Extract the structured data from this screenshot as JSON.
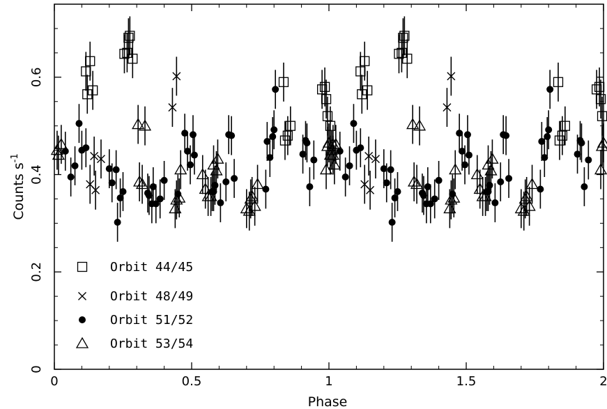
{
  "chart_data": {
    "type": "scatter",
    "title": "",
    "xlabel": "Phase",
    "ylabel": "Counts s",
    "ylabel_superscript": "-1",
    "xlim": [
      0,
      2
    ],
    "ylim": [
      0,
      0.75
    ],
    "x_ticks": [
      0,
      0.5,
      1,
      1.5,
      2
    ],
    "x_tick_labels": [
      "0",
      "0.5",
      "1",
      "1.5",
      "2"
    ],
    "y_ticks": [
      0,
      0.2,
      0.4,
      0.6
    ],
    "y_tick_labels": [
      "0",
      "0.2",
      "0.4",
      "0.6"
    ],
    "grid": false,
    "legend_position": "bottom-left",
    "series": [
      {
        "name": "Orbit 44/45",
        "marker": "square",
        "points": [
          [
            0.115,
            0.612
          ],
          [
            0.12,
            0.565
          ],
          [
            0.13,
            0.633
          ],
          [
            0.14,
            0.573
          ],
          [
            0.255,
            0.648
          ],
          [
            0.265,
            0.65
          ],
          [
            0.27,
            0.681
          ],
          [
            0.275,
            0.685
          ],
          [
            0.285,
            0.638
          ],
          [
            0.835,
            0.59
          ],
          [
            0.84,
            0.47
          ],
          [
            0.85,
            0.48
          ],
          [
            0.86,
            0.5
          ],
          [
            0.975,
            0.575
          ],
          [
            0.985,
            0.58
          ],
          [
            0.99,
            0.555
          ],
          [
            0.995,
            0.52
          ],
          [
            1.005,
            0.5
          ]
        ]
      },
      {
        "name": "Orbit 48/49",
        "marker": "cross",
        "points": [
          [
            0.13,
            0.38
          ],
          [
            0.145,
            0.438
          ],
          [
            0.15,
            0.368
          ],
          [
            0.17,
            0.432
          ],
          [
            0.43,
            0.538
          ],
          [
            0.445,
            0.602
          ]
        ]
      },
      {
        "name": "Orbit 51/52",
        "marker": "dot",
        "points": [
          [
            0.04,
            0.448
          ],
          [
            0.06,
            0.395
          ],
          [
            0.075,
            0.418
          ],
          [
            0.09,
            0.505
          ],
          [
            0.1,
            0.45
          ],
          [
            0.115,
            0.455
          ],
          [
            0.2,
            0.412
          ],
          [
            0.21,
            0.383
          ],
          [
            0.225,
            0.41
          ],
          [
            0.23,
            0.302
          ],
          [
            0.24,
            0.352
          ],
          [
            0.25,
            0.365
          ],
          [
            0.34,
            0.362
          ],
          [
            0.345,
            0.357
          ],
          [
            0.355,
            0.34
          ],
          [
            0.36,
            0.375
          ],
          [
            0.37,
            0.34
          ],
          [
            0.385,
            0.35
          ],
          [
            0.4,
            0.388
          ],
          [
            0.45,
            0.36
          ],
          [
            0.475,
            0.485
          ],
          [
            0.485,
            0.448
          ],
          [
            0.495,
            0.42
          ],
          [
            0.505,
            0.482
          ],
          [
            0.51,
            0.44
          ],
          [
            0.575,
            0.365
          ],
          [
            0.58,
            0.365
          ],
          [
            0.585,
            0.378
          ],
          [
            0.605,
            0.342
          ],
          [
            0.625,
            0.385
          ],
          [
            0.635,
            0.482
          ],
          [
            0.645,
            0.48
          ],
          [
            0.655,
            0.392
          ],
          [
            0.77,
            0.37
          ],
          [
            0.775,
            0.468
          ],
          [
            0.785,
            0.435
          ],
          [
            0.795,
            0.478
          ],
          [
            0.8,
            0.492
          ],
          [
            0.805,
            0.575
          ],
          [
            0.905,
            0.442
          ],
          [
            0.915,
            0.47
          ],
          [
            0.92,
            0.465
          ],
          [
            0.93,
            0.375
          ],
          [
            0.945,
            0.43
          ]
        ]
      },
      {
        "name": "Orbit 53/54",
        "marker": "triangle",
        "points": [
          [
            0.01,
            0.45
          ],
          [
            0.015,
            0.44
          ],
          [
            0.025,
            0.462
          ],
          [
            0.305,
            0.503
          ],
          [
            0.31,
            0.385
          ],
          [
            0.32,
            0.38
          ],
          [
            0.33,
            0.5
          ],
          [
            0.44,
            0.33
          ],
          [
            0.445,
            0.348
          ],
          [
            0.455,
            0.352
          ],
          [
            0.46,
            0.41
          ],
          [
            0.54,
            0.4
          ],
          [
            0.55,
            0.37
          ],
          [
            0.56,
            0.355
          ],
          [
            0.57,
            0.355
          ],
          [
            0.58,
            0.42
          ],
          [
            0.59,
            0.408
          ],
          [
            0.595,
            0.432
          ],
          [
            0.7,
            0.33
          ],
          [
            0.71,
            0.325
          ],
          [
            0.715,
            0.35
          ],
          [
            0.72,
            0.355
          ],
          [
            0.73,
            0.335
          ],
          [
            0.74,
            0.38
          ],
          [
            0.99,
            0.41
          ],
          [
            0.995,
            0.458
          ],
          [
            1.0,
            0.465
          ],
          [
            1.005,
            0.44
          ],
          [
            1.015,
            0.462
          ],
          [
            1.02,
            0.42
          ]
        ]
      }
    ]
  }
}
